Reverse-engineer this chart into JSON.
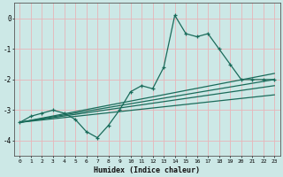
{
  "xlabel": "Humidex (Indice chaleur)",
  "background_color": "#cce8e6",
  "grid_color": "#e8b4b8",
  "line_color": "#1a6b5a",
  "x_values": [
    0,
    1,
    2,
    3,
    4,
    5,
    6,
    7,
    8,
    9,
    10,
    11,
    12,
    13,
    14,
    15,
    16,
    17,
    18,
    19,
    20,
    21,
    22,
    23
  ],
  "line1": [
    -3.4,
    -3.2,
    -3.1,
    -3.0,
    -3.1,
    -3.3,
    -3.7,
    -3.9,
    -3.5,
    -3.0,
    -2.4,
    -2.2,
    -2.3,
    -1.6,
    0.1,
    -0.5,
    -0.6,
    -0.5,
    -1.0,
    -1.5,
    -2.0,
    -2.0,
    -2.0,
    -2.0
  ],
  "trend_lines": [
    {
      "x0": 0,
      "y0": -3.4,
      "x1": 23,
      "y1": -1.8
    },
    {
      "x0": 0,
      "y0": -3.4,
      "x1": 23,
      "y1": -2.0
    },
    {
      "x0": 0,
      "y0": -3.4,
      "x1": 23,
      "y1": -2.2
    },
    {
      "x0": 0,
      "y0": -3.4,
      "x1": 23,
      "y1": -2.5
    }
  ],
  "ylim": [
    -4.5,
    0.5
  ],
  "xlim": [
    -0.5,
    23.5
  ],
  "yticks": [
    0,
    -1,
    -2,
    -3,
    -4
  ],
  "ytick_labels": [
    "0",
    "-1",
    "-2",
    "-3",
    "-4"
  ]
}
